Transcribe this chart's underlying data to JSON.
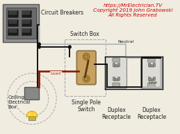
{
  "background_color": "#f0ece0",
  "title_text": "https://MrElectrician.TV\nCopyright 2019 John Grabowski\nAll Rights Reserved",
  "title_color": "#cc0000",
  "title_fontsize": 5.2,
  "label_circuit_breakers": "Circuit Breakers",
  "label_switch_box": "Switch Box",
  "label_single_pole_switch": "Single Pole\nSwitch",
  "label_ceiling_box": "Ceiling\nElectrical\nBox",
  "label_duplex1": "Duplex\nReceptacle",
  "label_duplex2": "Duplex\nReceptacle",
  "label_neutral": "Neutral",
  "label_line": "Line",
  "label_load": "Load",
  "wire_black": "#111111",
  "wire_white": "#bbbbbb",
  "wire_red": "#8b1a00",
  "box_gray": "#909090",
  "dashed_color": "#aaaaaa",
  "outlet_body": "#e0e0d8",
  "outlet_dark": "#707070",
  "switch_body": "#c8a060",
  "switch_edge": "#8b7040"
}
